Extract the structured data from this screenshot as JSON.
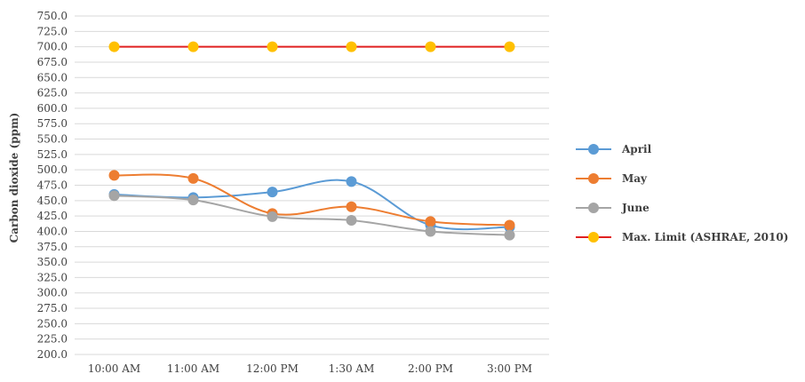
{
  "chart_data": {
    "type": "line",
    "title": "",
    "xlabel": "",
    "ylabel": "Carbon dioxide (ppm)",
    "categories": [
      "10:00 AM",
      "11:00 AM",
      "12:00 PM",
      "1:30 AM",
      "2:00 PM",
      "3:00 PM"
    ],
    "ylim": [
      200,
      750
    ],
    "ytick_step": 25,
    "grid": true,
    "legend_position": "right",
    "series": [
      {
        "name": "April",
        "color": "#5b9bd5",
        "values": [
          460,
          455,
          464,
          481,
          410,
          407
        ]
      },
      {
        "name": "May",
        "color": "#ed7d31",
        "values": [
          491,
          486,
          429,
          440,
          416,
          410
        ]
      },
      {
        "name": "June",
        "color": "#a5a5a5",
        "values": [
          458,
          451,
          424,
          418,
          400,
          394
        ]
      },
      {
        "name": "Max. Limit (ASHRAE, 2010)",
        "color": "#ffc000",
        "line_color": "#e02020",
        "values": [
          700,
          700,
          700,
          700,
          700,
          700
        ]
      }
    ]
  }
}
